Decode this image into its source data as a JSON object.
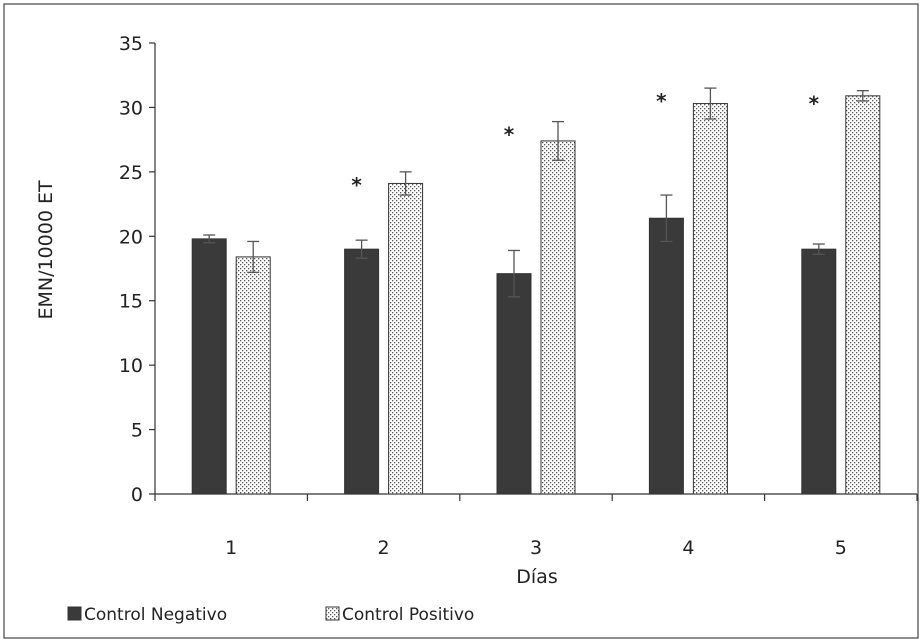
{
  "chart_data": {
    "type": "bar",
    "title": "",
    "xlabel": "Días",
    "ylabel": "EMN/10000 ET",
    "categories": [
      "1",
      "2",
      "3",
      "4",
      "5"
    ],
    "ylim": [
      0,
      35
    ],
    "yticks": [
      "0",
      "5",
      "10",
      "15",
      "20",
      "25",
      "30",
      "35"
    ],
    "grid": false,
    "legend_position": "bottom-left",
    "series": [
      {
        "name": "Control Negativo",
        "values": [
          19.8,
          19.0,
          17.1,
          21.4,
          19.0
        ],
        "errors": [
          0.3,
          0.7,
          1.8,
          1.8,
          0.4
        ],
        "color": "#3a3a3a",
        "pattern": "solid"
      },
      {
        "name": "Control Positivo",
        "values": [
          18.4,
          24.1,
          27.4,
          30.3,
          30.9
        ],
        "errors": [
          1.2,
          0.9,
          1.5,
          1.2,
          0.4
        ],
        "color": "#ffffff",
        "pattern": "dots"
      }
    ],
    "significance": [
      "",
      "*",
      "*",
      "*",
      "*"
    ]
  }
}
